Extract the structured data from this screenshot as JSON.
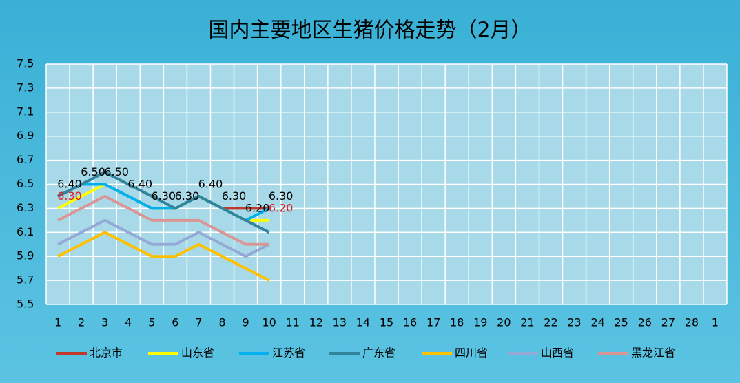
{
  "chart_data": {
    "type": "line",
    "title": "国内主要地区生猪价格走势（2月）",
    "categories": [
      "1",
      "2",
      "3",
      "4",
      "5",
      "6",
      "7",
      "8",
      "9",
      "10",
      "11",
      "12",
      "13",
      "14",
      "15",
      "16",
      "17",
      "18",
      "19",
      "20",
      "21",
      "22",
      "23",
      "24",
      "25",
      "26",
      "27",
      "28",
      "1"
    ],
    "ylim": [
      5.5,
      7.5
    ],
    "yticks": [
      5.5,
      5.7,
      5.9,
      6.1,
      6.3,
      6.5,
      6.7,
      6.9,
      7.1,
      7.3,
      7.5
    ],
    "grid": true,
    "legend": "bottom",
    "series": [
      {
        "name": "北京市",
        "color": "#c0392b",
        "values": [
          6.4,
          6.5,
          6.5,
          6.4,
          6.3,
          6.3,
          6.4,
          6.3,
          6.3,
          6.3,
          null,
          null,
          null,
          null,
          null,
          null,
          null,
          null,
          null,
          null,
          null,
          null,
          null,
          null,
          null,
          null,
          null,
          null,
          null
        ]
      },
      {
        "name": "山东省",
        "color": "#ffff00",
        "label_color": "#e02020",
        "values": [
          6.3,
          6.4,
          6.5,
          6.4,
          6.3,
          6.3,
          6.4,
          6.3,
          6.2,
          6.2,
          null,
          null,
          null,
          null,
          null,
          null,
          null,
          null,
          null,
          null,
          null,
          null,
          null,
          null,
          null,
          null,
          null,
          null,
          null
        ],
        "value_labels": [
          "6.30",
          null,
          null,
          null,
          null,
          null,
          null,
          null,
          null,
          "6.20",
          null,
          null,
          null,
          null,
          null,
          null,
          null,
          null,
          null,
          null,
          null,
          null,
          null,
          null,
          null,
          null,
          null,
          null,
          null
        ]
      },
      {
        "name": "江苏省",
        "color": "#00b0f0",
        "label_color": "#000000",
        "values": [
          6.4,
          6.5,
          6.5,
          6.4,
          6.3,
          6.3,
          6.4,
          6.3,
          6.2,
          6.3,
          null,
          null,
          null,
          null,
          null,
          null,
          null,
          null,
          null,
          null,
          null,
          null,
          null,
          null,
          null,
          null,
          null,
          null,
          null
        ],
        "value_labels": [
          "6.40",
          "6.50",
          "6.50",
          "6.40",
          "6.30",
          "6.30",
          "6.40",
          "6.30",
          "6.20",
          "6.30",
          null,
          null,
          null,
          null,
          null,
          null,
          null,
          null,
          null,
          null,
          null,
          null,
          null,
          null,
          null,
          null,
          null,
          null,
          null
        ]
      },
      {
        "name": "广东省",
        "color": "#31849b",
        "values": [
          6.4,
          6.5,
          6.6,
          6.5,
          6.4,
          6.3,
          6.4,
          6.3,
          6.2,
          6.1,
          null,
          null,
          null,
          null,
          null,
          null,
          null,
          null,
          null,
          null,
          null,
          null,
          null,
          null,
          null,
          null,
          null,
          null,
          null
        ]
      },
      {
        "name": "四川省",
        "color": "#ffc000",
        "values": [
          5.9,
          6.0,
          6.1,
          6.0,
          5.9,
          5.9,
          6.0,
          5.9,
          5.8,
          5.7,
          null,
          null,
          null,
          null,
          null,
          null,
          null,
          null,
          null,
          null,
          null,
          null,
          null,
          null,
          null,
          null,
          null,
          null,
          null
        ]
      },
      {
        "name": "山西省",
        "color": "#95a9d6",
        "values": [
          6.0,
          6.1,
          6.2,
          6.1,
          6.0,
          6.0,
          6.1,
          6.0,
          5.9,
          6.0,
          null,
          null,
          null,
          null,
          null,
          null,
          null,
          null,
          null,
          null,
          null,
          null,
          null,
          null,
          null,
          null,
          null,
          null,
          null
        ]
      },
      {
        "name": "黑龙江省",
        "color": "#d99694",
        "values": [
          6.2,
          6.3,
          6.4,
          6.3,
          6.2,
          6.2,
          6.2,
          6.1,
          6.0,
          6.0,
          null,
          null,
          null,
          null,
          null,
          null,
          null,
          null,
          null,
          null,
          null,
          null,
          null,
          null,
          null,
          null,
          null,
          null,
          null
        ]
      }
    ]
  }
}
